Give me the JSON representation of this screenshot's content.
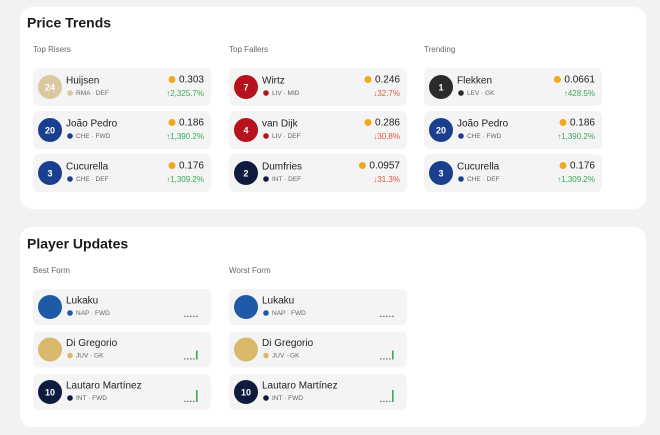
{
  "price_trends": {
    "title": "Price Trends",
    "columns": [
      {
        "title": "Top Risers",
        "players": [
          {
            "name": "Huijsen",
            "jersey": "24",
            "meta": "RMA · DEF",
            "price": "0.303",
            "change": "↑2,325.7%",
            "color": "#d8c9a0"
          },
          {
            "name": "João Pedro",
            "jersey": "20",
            "meta": "CHE · FWD",
            "price": "0.186",
            "change": "↑1,390.2%",
            "color": "#1a3f8f"
          },
          {
            "name": "Cucurella",
            "jersey": "3",
            "meta": "CHE · DEF",
            "price": "0.176",
            "change": "↑1,309.2%",
            "color": "#1a3f8f"
          }
        ]
      },
      {
        "title": "Top Fallers",
        "players": [
          {
            "name": "Wirtz",
            "jersey": "7",
            "meta": "LIV · MID",
            "price": "0.246",
            "change": "↓32.7%",
            "color": "#b5121b"
          },
          {
            "name": "van Dijk",
            "jersey": "4",
            "meta": "LIV · DEF",
            "price": "0.286",
            "change": "↓30.8%",
            "color": "#b5121b"
          },
          {
            "name": "Dumfries",
            "jersey": "2",
            "meta": "INT · DEF",
            "price": "0.0957",
            "change": "↓31.3%",
            "color": "#0d1b3d"
          }
        ]
      },
      {
        "title": "Trending",
        "players": [
          {
            "name": "Flekken",
            "jersey": "1",
            "meta": "LEV · GK",
            "price": "0.0661",
            "change": "↑428.5%",
            "color": "#2b2b2b"
          },
          {
            "name": "João Pedro",
            "jersey": "20",
            "meta": "CHE · FWD",
            "price": "0.186",
            "change": "↑1,390.2%",
            "color": "#1a3f8f"
          },
          {
            "name": "Cucurella",
            "jersey": "3",
            "meta": "CHE · DEF",
            "price": "0.176",
            "change": "↑1,309.2%",
            "color": "#1a3f8f"
          }
        ]
      }
    ]
  },
  "player_updates": {
    "title": "Player Updates",
    "columns": [
      {
        "title": "Best Form",
        "players": [
          {
            "name": "Lukaku",
            "meta": "NAP · FWD",
            "color": "#1f5aa6",
            "form": [
              0,
              0,
              0,
              0,
              0
            ]
          },
          {
            "name": "Di Gregorio",
            "meta": "JUV · GK",
            "color": "#d9b86c",
            "form": [
              0,
              0,
              0,
              0,
              6
            ]
          },
          {
            "name": "Lautaro Martínez",
            "jersey": "10",
            "meta": "INT · FWD",
            "color": "#0d1b3d",
            "form": [
              0,
              0,
              0,
              0,
              8
            ]
          }
        ]
      },
      {
        "title": "Worst Form",
        "players": [
          {
            "name": "Lukaku",
            "meta": "NAP · FWD",
            "color": "#1f5aa6",
            "form": [
              0,
              0,
              0,
              0,
              0
            ]
          },
          {
            "name": "Di Gregorio",
            "meta": "JUV · GK",
            "color": "#d9b86c",
            "form": [
              0,
              0,
              0,
              0,
              6
            ]
          },
          {
            "name": "Lautaro Martínez",
            "jersey": "10",
            "meta": "INT · FWD",
            "color": "#0d1b3d",
            "form": [
              0,
              0,
              0,
              0,
              8
            ]
          }
        ]
      }
    ]
  }
}
